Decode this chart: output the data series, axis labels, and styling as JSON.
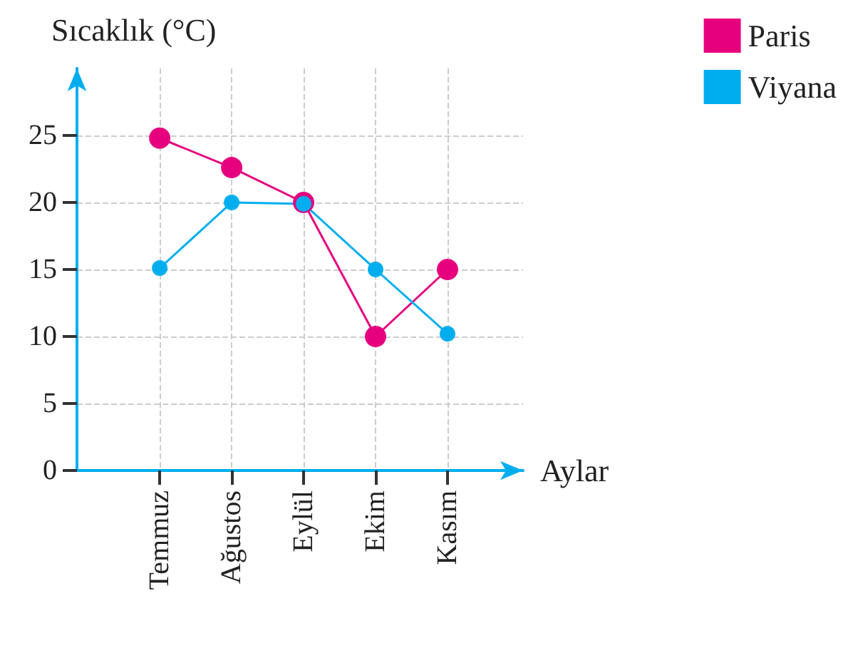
{
  "chart_data": {
    "type": "line",
    "xlabel": "Aylar",
    "ylabel": "Sıcaklık (°C)",
    "categories": [
      "Temmuz",
      "Ağustos",
      "Eylül",
      "Ekim",
      "Kasım"
    ],
    "series": [
      {
        "name": "Paris",
        "color": "#e6007e",
        "values": [
          24.8,
          22.6,
          20,
          10,
          15
        ]
      },
      {
        "name": "Viyana",
        "color": "#00aeef",
        "values": [
          15.1,
          20,
          19.9,
          15,
          10.2
        ]
      }
    ],
    "ylim": [
      0,
      30
    ],
    "yticks": [
      0,
      5,
      10,
      15,
      20,
      25
    ],
    "grid": true,
    "legend": "top right",
    "marker": "circle",
    "line_style": "solid"
  }
}
